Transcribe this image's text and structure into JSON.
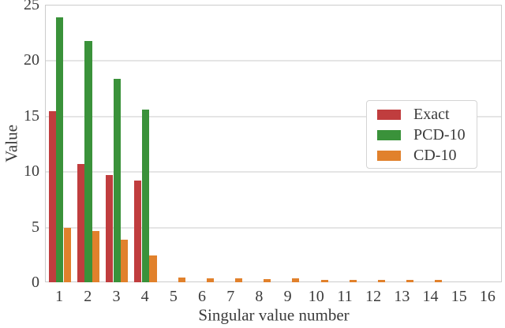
{
  "chart_data": {
    "type": "bar",
    "title": "",
    "xlabel": "Singular value number",
    "ylabel": "Value",
    "categories": [
      "1",
      "2",
      "3",
      "4",
      "5",
      "6",
      "7",
      "8",
      "9",
      "10",
      "11",
      "12",
      "13",
      "14",
      "15",
      "16"
    ],
    "series": [
      {
        "name": "Exact",
        "color": "#c03d3e",
        "values": [
          15.4,
          10.6,
          9.6,
          9.1,
          0,
          0,
          0,
          0,
          0,
          0,
          0,
          0,
          0,
          0,
          0,
          0
        ]
      },
      {
        "name": "PCD-10",
        "color": "#3a923a",
        "values": [
          23.8,
          21.7,
          18.3,
          15.5,
          0,
          0,
          0,
          0,
          0,
          0,
          0,
          0,
          0,
          0,
          0,
          0
        ]
      },
      {
        "name": "CD-10",
        "color": "#e1812c",
        "values": [
          4.9,
          4.6,
          3.8,
          2.4,
          0.4,
          0.3,
          0.35,
          0.25,
          0.3,
          0.2,
          0.15,
          0.15,
          0.15,
          0.15,
          0,
          0
        ]
      }
    ],
    "ylim": [
      0,
      25
    ],
    "yticks": [
      0,
      5,
      10,
      15,
      20,
      25
    ],
    "grid": true,
    "legend_position": "center right",
    "colors": {
      "grid": "#e5e5e5",
      "spine": "#cccccc",
      "text": "#3b3b3b",
      "background": "#ffffff"
    }
  }
}
